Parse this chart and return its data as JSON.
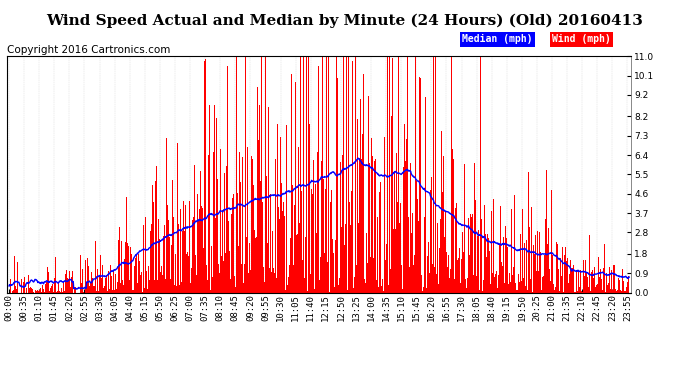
{
  "title": "Wind Speed Actual and Median by Minute (24 Hours) (Old) 20160413",
  "copyright": "Copyright 2016 Cartronics.com",
  "ylabel_right_ticks": [
    0.0,
    0.9,
    1.8,
    2.8,
    3.7,
    4.6,
    5.5,
    6.4,
    7.3,
    8.2,
    9.2,
    10.1,
    11.0
  ],
  "ylim": [
    0.0,
    11.0
  ],
  "legend_median_label": "Median (mph)",
  "legend_wind_label": "Wind (mph)",
  "median_color": "#0000FF",
  "wind_color": "#FF0000",
  "background_color": "#FFFFFF",
  "grid_color": "#AAAAAA",
  "title_fontsize": 11,
  "copyright_fontsize": 7.5,
  "tick_fontsize": 6.5,
  "wind_seed": 42,
  "median_seed": 123
}
